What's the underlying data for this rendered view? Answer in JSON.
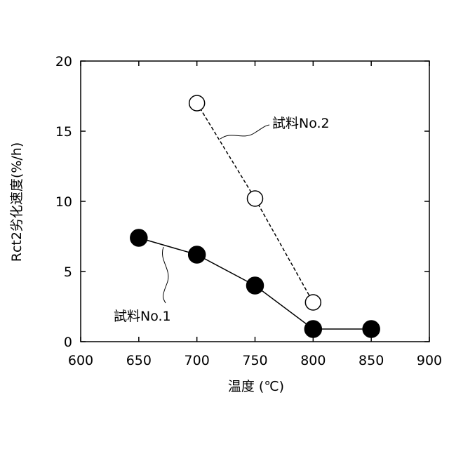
{
  "chart_data": {
    "type": "line",
    "xlabel": "温度 (℃)",
    "ylabel": "Rct2劣化速度(%/h)",
    "xlim": [
      600,
      900
    ],
    "ylim": [
      0,
      20
    ],
    "xticks": [
      600,
      650,
      700,
      750,
      800,
      850,
      900
    ],
    "yticks": [
      0,
      5,
      10,
      15,
      20
    ],
    "grid": false,
    "series": [
      {
        "name": "試料No.1",
        "marker": "filled-circle",
        "line_style": "solid",
        "color": "#000000",
        "points": [
          {
            "x": 650,
            "y": 7.4
          },
          {
            "x": 700,
            "y": 6.2
          },
          {
            "x": 750,
            "y": 4.0
          },
          {
            "x": 800,
            "y": 0.9
          },
          {
            "x": 850,
            "y": 0.9
          }
        ]
      },
      {
        "name": "試料No.2",
        "marker": "open-circle",
        "line_style": "dashed",
        "color": "#000000",
        "points": [
          {
            "x": 700,
            "y": 17.0
          },
          {
            "x": 750,
            "y": 10.2
          },
          {
            "x": 800,
            "y": 2.8
          }
        ]
      }
    ]
  }
}
